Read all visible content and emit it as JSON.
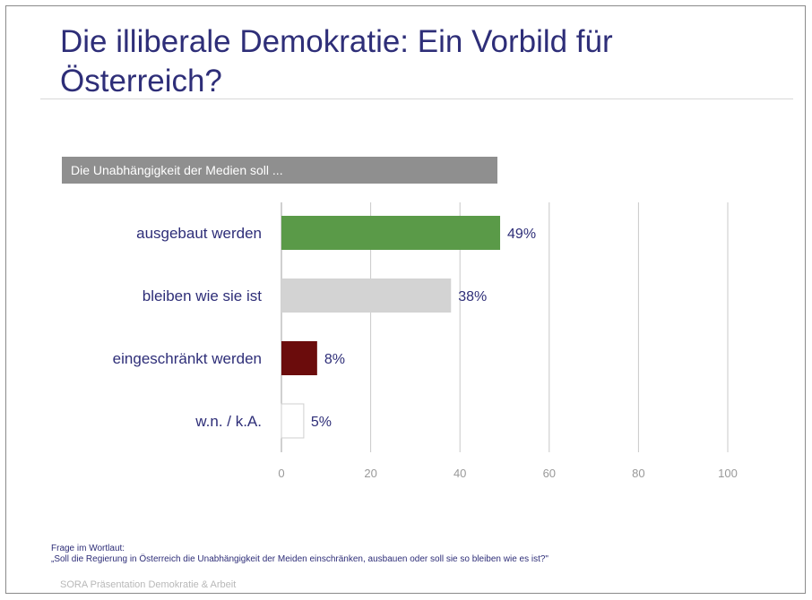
{
  "slide": {
    "title": "Die illiberale Demokratie: Ein Vorbild für Österreich?",
    "question": "Die Unabhängigkeit der Medien soll ...",
    "footer_label": "Frage im Wortlaut:",
    "footer_quote": "„Soll die Regierung in Österreich die Unabhängigkeit der Meiden  einschränken, ausbauen oder soll sie so bleiben wie es ist?\"",
    "source": "SORA Präsentation Demokratie & Arbeit"
  },
  "chart_data": {
    "type": "bar",
    "orientation": "horizontal",
    "categories": [
      "ausgebaut werden",
      "bleiben wie sie ist",
      "eingeschränkt werden",
      "w.n. / k.A."
    ],
    "values": [
      49,
      38,
      8,
      5
    ],
    "value_labels": [
      "49%",
      "38%",
      "8%",
      "5%"
    ],
    "colors": [
      "#5a9a48",
      "#d3d3d3",
      "#6b0c0c",
      "#ffffff"
    ],
    "xlim": [
      0,
      100
    ],
    "xticks": [
      0,
      20,
      40,
      60,
      80,
      100
    ],
    "grid": true
  }
}
